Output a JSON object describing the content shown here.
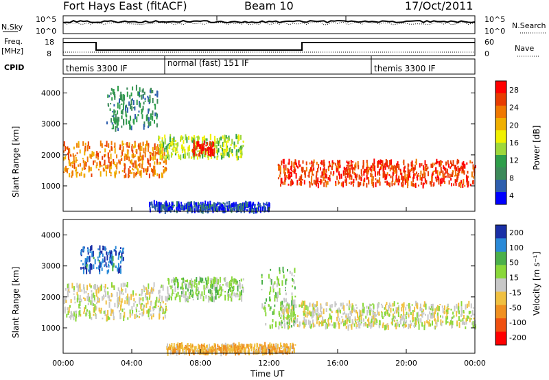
{
  "header": {
    "station": "Fort Hays East (fitACF)",
    "beam": "Beam 10",
    "date": "17/Oct/2011"
  },
  "noise_panel": {
    "left_label": "N.Sky",
    "right_label": "N.Search",
    "left_ticks": [
      "10^5",
      "10^0"
    ],
    "right_ticks": [
      "10^5",
      "10^0"
    ]
  },
  "freq_panel": {
    "left_label_1": "Freq.",
    "left_label_2": "[MHz]",
    "left_ticks": [
      "18",
      "8"
    ],
    "right_label": "Nave",
    "right_ticks": [
      "60",
      "0"
    ]
  },
  "cpid_panel": {
    "label": "CPID",
    "modes": [
      "themis 3300 IF",
      "normal (fast) 151 IF",
      "themis 3300 IF"
    ]
  },
  "axes": {
    "ylabel": "Slant Range [km]",
    "xlabel": "Time UT",
    "yticks": [
      "4000",
      "3000",
      "2000",
      "1000"
    ],
    "xticks": [
      "00:00",
      "04:00",
      "08:00",
      "12:00",
      "16:00",
      "20:00",
      "00:00"
    ]
  },
  "power_colorbar": {
    "title": "Power [dB]",
    "ticks": [
      "28",
      "24",
      "20",
      "16",
      "12",
      "8",
      "4"
    ],
    "colors": [
      "#0000ff",
      "#2e5fae",
      "#3c8a5a",
      "#2e9e4a",
      "#9ed83a",
      "#f0f000",
      "#f0b000",
      "#f07800",
      "#e83c00",
      "#ff0000"
    ]
  },
  "velocity_colorbar": {
    "title": "Velocity [m s⁻¹]",
    "ticks": [
      "200",
      "100",
      "50",
      "15",
      "-15",
      "-50",
      "-100",
      "-200"
    ],
    "colors": [
      "#1a2fa6",
      "#2a8ad8",
      "#4bb04a",
      "#8ad83a",
      "#c8c8c8",
      "#f0c040",
      "#f09020",
      "#f05010",
      "#ff0000"
    ]
  },
  "chart_data": [
    {
      "type": "heatmap",
      "panel": "Power",
      "x_range": [
        "00:00",
        "24:00"
      ],
      "y_range_km": [
        180,
        4500
      ],
      "value_label": "Power [dB]",
      "value_range": [
        0,
        30
      ],
      "features": [
        {
          "name": "early band",
          "t_start_h": 0.0,
          "t_end_h": 6.0,
          "range_start_km": 1300,
          "range_end_km": 2400,
          "power_db": 22
        },
        {
          "name": "morning high arc",
          "t_start_h": 2.5,
          "t_end_h": 5.5,
          "range_start_km": 2800,
          "range_end_km": 4200,
          "power_db": 8
        },
        {
          "name": "day band",
          "t_start_h": 5.5,
          "t_end_h": 10.5,
          "range_start_km": 1900,
          "range_end_km": 2600,
          "power_db": 14
        },
        {
          "name": "8UT enhancement",
          "t_start_h": 7.5,
          "t_end_h": 8.8,
          "range_start_km": 2000,
          "range_end_km": 2400,
          "power_db": 28
        },
        {
          "name": "night band",
          "t_start_h": 12.5,
          "t_end_h": 24.0,
          "range_start_km": 1000,
          "range_end_km": 1800,
          "power_db": 26
        },
        {
          "name": "near range ground",
          "t_start_h": 5.0,
          "t_end_h": 12.0,
          "range_start_km": 180,
          "range_end_km": 450,
          "power_db": 4
        }
      ]
    },
    {
      "type": "heatmap",
      "panel": "Velocity",
      "x_range": [
        "00:00",
        "24:00"
      ],
      "y_range_km": [
        180,
        4500
      ],
      "value_label": "Velocity [m s⁻¹]",
      "value_range": [
        -200,
        200
      ],
      "features": [
        {
          "name": "early band",
          "t_start_h": 0.0,
          "t_end_h": 6.0,
          "range_start_km": 1300,
          "range_end_km": 2400,
          "velocity": 0
        },
        {
          "name": "morning high arc",
          "t_start_h": 1.0,
          "t_end_h": 3.5,
          "range_start_km": 2800,
          "range_end_km": 3600,
          "velocity": 150
        },
        {
          "name": "day band",
          "t_start_h": 6.0,
          "t_end_h": 10.5,
          "range_start_km": 1900,
          "range_end_km": 2600,
          "velocity": 40
        },
        {
          "name": "night band",
          "t_start_h": 12.5,
          "t_end_h": 24.0,
          "range_start_km": 1000,
          "range_end_km": 1800,
          "velocity": 0
        },
        {
          "name": "12UT arc",
          "t_start_h": 11.5,
          "t_end_h": 13.5,
          "range_start_km": 1000,
          "range_end_km": 2900,
          "velocity": 40
        },
        {
          "name": "near range",
          "t_start_h": 6.0,
          "t_end_h": 13.5,
          "range_start_km": 180,
          "range_end_km": 450,
          "velocity": -60
        }
      ]
    }
  ]
}
